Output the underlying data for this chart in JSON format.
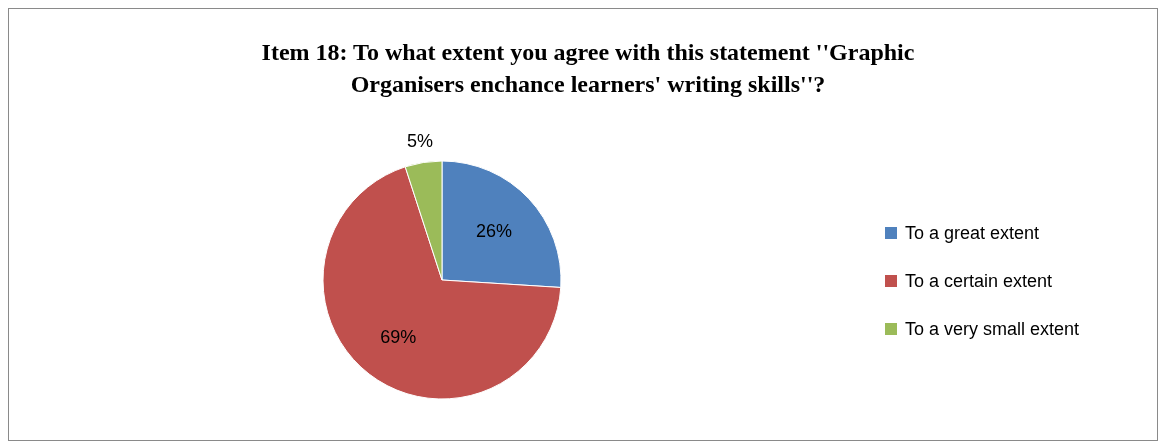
{
  "chart_data": {
    "type": "pie",
    "title": "Item 18: To what extent you agree with this statement ''Graphic Organisers enchance learners' writing skills''?",
    "categories": [
      "To a great extent",
      "To a certain extent",
      "To a very small extent"
    ],
    "values": [
      26,
      69,
      5
    ],
    "colors": [
      "#4f81bd",
      "#c0504d",
      "#9bbb59"
    ],
    "value_labels": [
      "26%",
      "69%",
      "5%"
    ],
    "legend": "right"
  }
}
